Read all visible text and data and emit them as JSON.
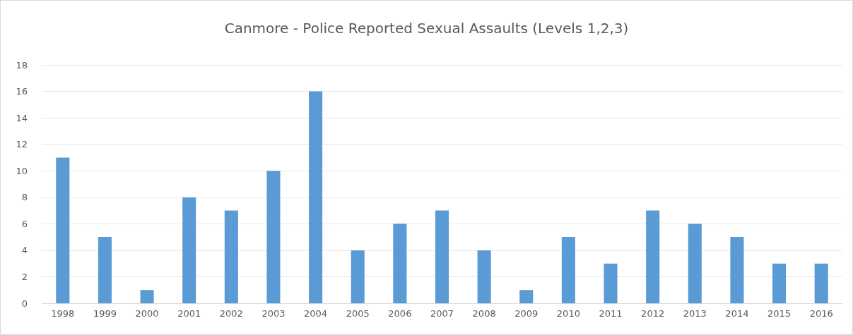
{
  "chart_data": {
    "type": "bar",
    "title": "Canmore - Police Reported Sexual Assaults (Levels 1,2,3)",
    "categories": [
      "1998",
      "1999",
      "2000",
      "2001",
      "2002",
      "2003",
      "2004",
      "2005",
      "2006",
      "2007",
      "2008",
      "2009",
      "2010",
      "2011",
      "2012",
      "2013",
      "2014",
      "2015",
      "2016"
    ],
    "values": [
      11,
      5,
      1,
      8,
      7,
      10,
      16,
      4,
      6,
      7,
      4,
      1,
      5,
      3,
      7,
      6,
      5,
      3,
      3
    ],
    "color": "#5b9bd5",
    "ylim": [
      0,
      18
    ],
    "yticks": [
      0,
      2,
      4,
      6,
      8,
      10,
      12,
      14,
      16,
      18
    ],
    "grid": "y"
  }
}
